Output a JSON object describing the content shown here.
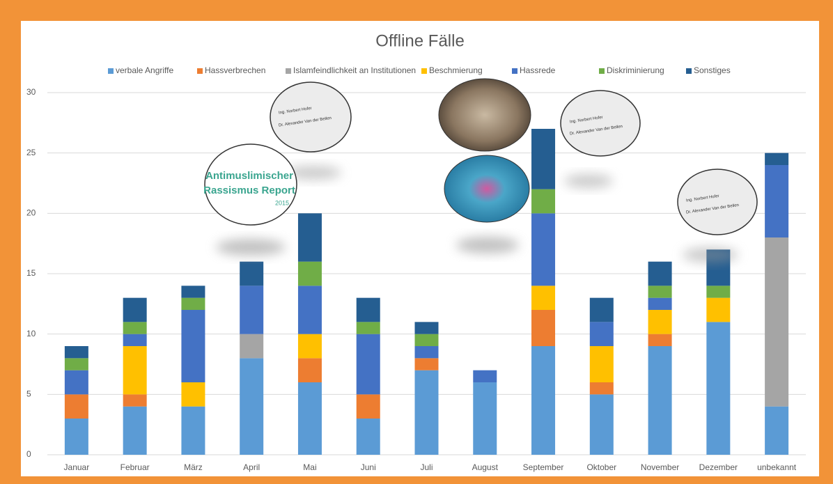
{
  "chart_data": {
    "type": "stacked_bar",
    "title": "Offline Fälle",
    "categories": [
      "Januar",
      "Februar",
      "März",
      "April",
      "Mai",
      "Juni",
      "Juli",
      "August",
      "September",
      "Oktober",
      "November",
      "Dezember",
      "unbekannt"
    ],
    "series": [
      {
        "name": "verbale Angriffe",
        "color": "#5b9bd5",
        "values": [
          3,
          4,
          4,
          8,
          6,
          3,
          7,
          6,
          9,
          5,
          9,
          11,
          4
        ]
      },
      {
        "name": "Hassverbrechen",
        "color": "#ed7d31",
        "values": [
          2,
          1,
          0,
          0,
          2,
          2,
          1,
          0,
          3,
          1,
          1,
          0,
          0
        ]
      },
      {
        "name": "Islamfeindlichkeit an Institutionen",
        "color": "#a5a5a5",
        "values": [
          0,
          0,
          0,
          2,
          0,
          0,
          0,
          0,
          0,
          0,
          0,
          0,
          14
        ]
      },
      {
        "name": "Beschmierung",
        "color": "#ffc000",
        "values": [
          0,
          4,
          2,
          0,
          2,
          0,
          0,
          0,
          2,
          3,
          2,
          2,
          0
        ]
      },
      {
        "name": "Hassrede",
        "color": "#4472c4",
        "values": [
          2,
          1,
          6,
          4,
          4,
          5,
          1,
          1,
          6,
          2,
          1,
          0,
          6
        ]
      },
      {
        "name": "Diskriminierung",
        "color": "#70ad47",
        "values": [
          1,
          1,
          1,
          0,
          2,
          1,
          1,
          0,
          2,
          0,
          1,
          1,
          0
        ]
      },
      {
        "name": "Sonstiges",
        "color": "#255e91",
        "values": [
          1,
          2,
          1,
          2,
          4,
          2,
          1,
          0,
          5,
          2,
          2,
          3,
          1
        ]
      }
    ],
    "ylim": [
      0,
      30
    ],
    "yticks": [
      0,
      5,
      10,
      15,
      20,
      25,
      30
    ],
    "grid": true,
    "report_badge": [
      "Antimuslimischer",
      "Rassismus Report",
      "2015"
    ],
    "ballot_labels": [
      "Ing. Norbert Hofer",
      "Dr. Alexander Van der Bellen"
    ]
  }
}
